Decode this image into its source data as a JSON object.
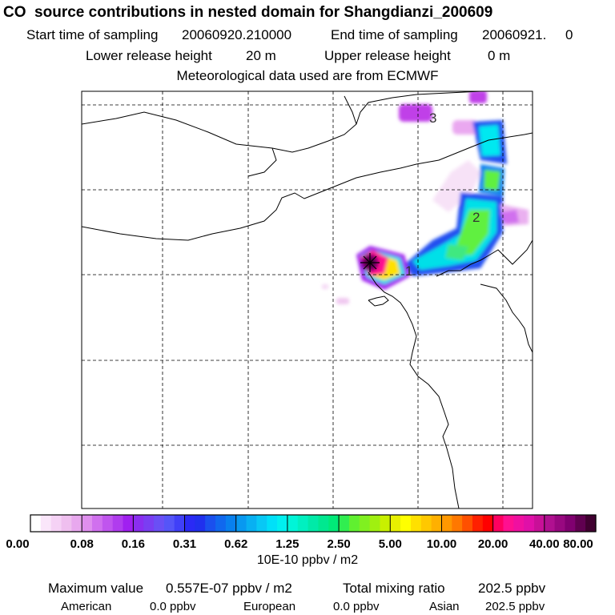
{
  "header": {
    "title": "CO  source contributions in nested domain for Shangdianzi_200609",
    "start_label": "Start time of sampling",
    "start_value": "20060920.210000",
    "end_label": "End time of sampling",
    "end_value": "20060921.     0",
    "lower_label": "Lower release height",
    "lower_value": "20 m",
    "upper_label": "Upper release height",
    "upper_value": "0 m",
    "met_text": "Meteorological data used are from ECMWF"
  },
  "chart_data": {
    "type": "heatmap",
    "description_units": "10E-10 ppbv / m2",
    "colorbar_ticks": [
      "0.00",
      "0.08",
      "0.16",
      "0.31",
      "0.62",
      "1.25",
      "2.50",
      "5.00",
      "10.00",
      "20.00",
      "40.00",
      "80.00"
    ],
    "colorbar_colors": [
      "#ffffff",
      "#fae6fa",
      "#f5d2f5",
      "#efbfef",
      "#e8a8ee",
      "#df8fee",
      "#d070ee",
      "#c055ee",
      "#b03cee",
      "#a020f0",
      "#8a2ef0",
      "#7a3ef2",
      "#6a4ff5",
      "#5555f8",
      "#4040f8",
      "#2a2af5",
      "#2030ee",
      "#1a50ee",
      "#1068ee",
      "#0880ee",
      "#0898f0",
      "#08b0f2",
      "#08c8f5",
      "#00e0f8",
      "#00f0f0",
      "#00f5d8",
      "#00f0c0",
      "#00eaa8",
      "#00e890",
      "#00ea78",
      "#30ee50",
      "#60f030",
      "#80f020",
      "#a0f010",
      "#c8f000",
      "#e8f000",
      "#ffff00",
      "#ffe000",
      "#ffc800",
      "#ffb000",
      "#ff9800",
      "#ff7800",
      "#ff5000",
      "#ff2000",
      "#ff0000",
      "#ff0060",
      "#ff1090",
      "#f010a0",
      "#e010a8",
      "#c81098",
      "#b01090",
      "#980880",
      "#800070",
      "#600050",
      "#400030"
    ],
    "grid_lines_x": 5,
    "grid_lines_y": 5,
    "trajectory_labels": [
      "1",
      "2",
      "3"
    ],
    "source_marker": "Shangdianzi receptor (+)",
    "maximum_value": "0.557E-07 ppbv / m2",
    "total_mixing_ratio": "202.5 ppbv",
    "regions": [
      {
        "name": "American",
        "value": "0.0 ppbv"
      },
      {
        "name": "European",
        "value": "0.0 ppbv"
      },
      {
        "name": "Asian",
        "value": "202.5 ppbv"
      }
    ]
  },
  "footer": {
    "max_label": "Maximum value",
    "total_label": "Total mixing ratio"
  },
  "colors": {
    "border": "#000000",
    "grid": "#000000"
  }
}
